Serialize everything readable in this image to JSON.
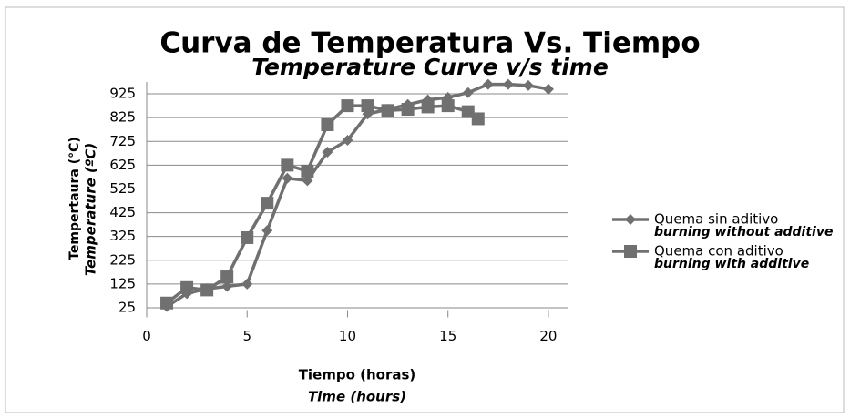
{
  "chart_data": {
    "type": "line",
    "title": "Curva de Temperatura Vs. Tiempo",
    "subtitle": "Temperature Curve v/s time",
    "y_label": "Tempertaura (°C)",
    "y_label_en": "Temperature (ºC)",
    "x_label": "Tiempo (horas)",
    "x_label_en": "Time (hours)",
    "xlim": [
      0,
      21
    ],
    "xticks": [
      0,
      5,
      10,
      15,
      20
    ],
    "ylim": [
      0,
      975
    ],
    "yticks": [
      25,
      125,
      225,
      325,
      425,
      525,
      625,
      725,
      825,
      925
    ],
    "grid": true,
    "legend": "right",
    "series": [
      {
        "name": "Quema sin aditivo",
        "name_en": "burning without additive",
        "color": "#707070",
        "marker": "diamond",
        "x": [
          1,
          2,
          3,
          4,
          5,
          6,
          7,
          8,
          9,
          10,
          11,
          12,
          13,
          14,
          15,
          16,
          17,
          18,
          19,
          20
        ],
        "values": [
          30,
          85,
          105,
          115,
          125,
          350,
          570,
          560,
          680,
          730,
          840,
          860,
          880,
          900,
          910,
          930,
          965,
          965,
          960,
          945
        ]
      },
      {
        "name": "Quema con aditivo",
        "name_en": "burning with additive",
        "color": "#707070",
        "marker": "square",
        "x": [
          1,
          2,
          3,
          4,
          5,
          6,
          7,
          8,
          9,
          10,
          11,
          12,
          13,
          14,
          15,
          16,
          16.5
        ],
        "values": [
          45,
          110,
          100,
          155,
          320,
          465,
          625,
          600,
          795,
          875,
          875,
          855,
          860,
          870,
          875,
          850,
          820
        ]
      }
    ]
  }
}
